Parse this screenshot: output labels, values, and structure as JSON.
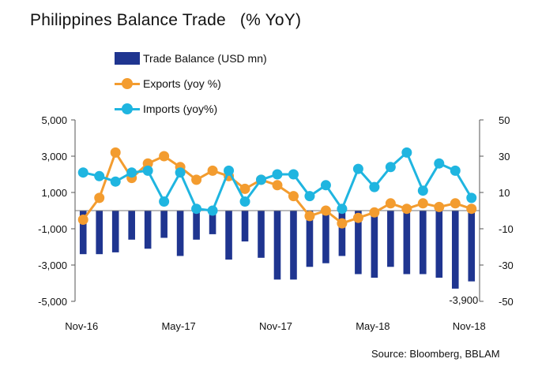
{
  "title": "Philippines Balance Trade   (% YoY)",
  "source": "Source: Bloomberg, BBLAM",
  "legend": [
    {
      "label": "Trade Balance (USD mn)",
      "color": "#1f3590",
      "kind": "bar"
    },
    {
      "label": "Exports (yoy %)",
      "color": "#f39c2f",
      "kind": "line"
    },
    {
      "label": "Imports (yoy%)",
      "color": "#1fb5e0",
      "kind": "line"
    }
  ],
  "chart_data": {
    "type": "bar",
    "categories": [
      "Nov-16",
      "Dec-16",
      "Jan-17",
      "Feb-17",
      "Mar-17",
      "Apr-17",
      "May-17",
      "Jun-17",
      "Jul-17",
      "Aug-17",
      "Sep-17",
      "Oct-17",
      "Nov-17",
      "Dec-17",
      "Jan-18",
      "Feb-18",
      "Mar-18",
      "Apr-18",
      "May-18",
      "Jun-18",
      "Jul-18",
      "Aug-18",
      "Sep-18",
      "Oct-18",
      "Nov-18"
    ],
    "x_tick_labels": [
      "Nov-16",
      "May-17",
      "Nov-17",
      "May-18",
      "Nov-18"
    ],
    "y_left": {
      "ticks": [
        "5,000",
        "3,000",
        "1,000",
        "-1,000",
        "-3,000",
        "-5,000"
      ],
      "min": -5000,
      "max": 5000
    },
    "y_right": {
      "ticks": [
        "50",
        "30",
        "10",
        "-10",
        "-30",
        "-50"
      ],
      "min": -50,
      "max": 50
    },
    "series": [
      {
        "name": "Trade Balance (USD mn)",
        "axis": "left",
        "kind": "bar",
        "color": "#1f3590",
        "values": [
          -2400,
          -2400,
          -2300,
          -1600,
          -2100,
          -1500,
          -2500,
          -1600,
          -1300,
          -2700,
          -1700,
          -2600,
          -3800,
          -3800,
          -3100,
          -2900,
          -2500,
          -3500,
          -3700,
          -3100,
          -3500,
          -3500,
          -3700,
          -4300,
          -3900
        ]
      },
      {
        "name": "Exports (yoy %)",
        "axis": "right",
        "kind": "line",
        "color": "#f39c2f",
        "values": [
          -5,
          7,
          32,
          18,
          26,
          30,
          24,
          17,
          22,
          19,
          12,
          17,
          14,
          8,
          -3,
          0,
          -7,
          -4,
          -1,
          4,
          1,
          4,
          2,
          4,
          1
        ]
      },
      {
        "name": "Imports (yoy%)",
        "axis": "right",
        "kind": "line",
        "color": "#1fb5e0",
        "values": [
          21,
          19,
          16,
          21,
          22,
          5,
          21,
          1,
          0,
          22,
          5,
          17,
          20,
          20,
          8,
          14,
          1,
          23,
          13,
          24,
          32,
          11,
          26,
          22,
          7
        ]
      }
    ],
    "annotation": "-3,900"
  }
}
